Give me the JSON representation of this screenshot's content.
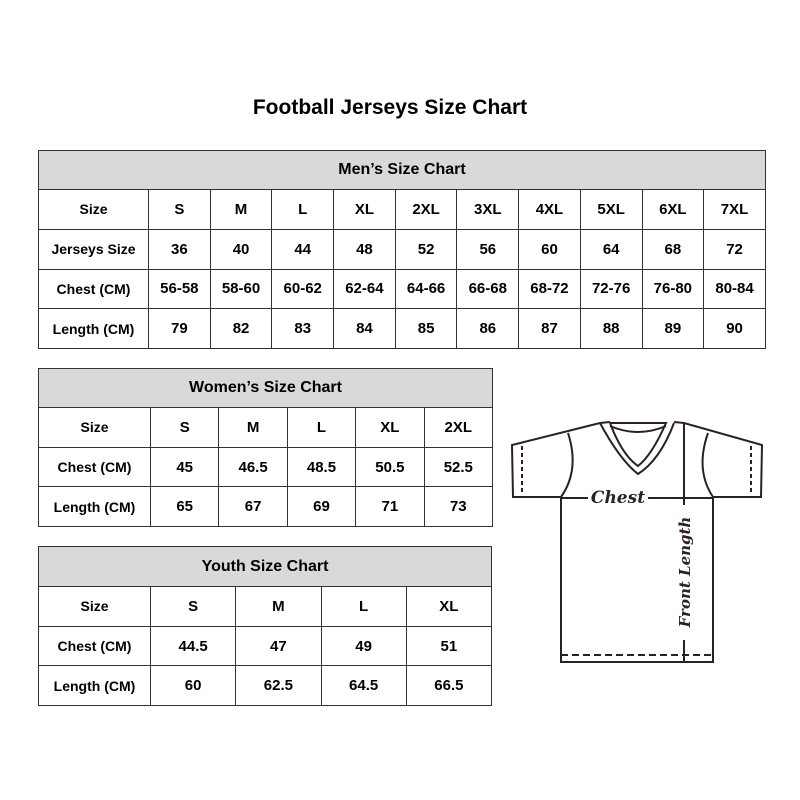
{
  "title": "Football Jerseys Size Chart",
  "tables": [
    {
      "id": "men",
      "heading": "Men’s Size Chart",
      "rows": [
        [
          "Size",
          "S",
          "M",
          "L",
          "XL",
          "2XL",
          "3XL",
          "4XL",
          "5XL",
          "6XL",
          "7XL"
        ],
        [
          "Jerseys Size",
          "36",
          "40",
          "44",
          "48",
          "52",
          "56",
          "60",
          "64",
          "68",
          "72"
        ],
        [
          "Chest (CM)",
          "56-58",
          "58-60",
          "60-62",
          "62-64",
          "64-66",
          "66-68",
          "68-72",
          "72-76",
          "76-80",
          "80-84"
        ],
        [
          "Length (CM)",
          "79",
          "82",
          "83",
          "84",
          "85",
          "86",
          "87",
          "88",
          "89",
          "90"
        ]
      ]
    },
    {
      "id": "women",
      "heading": "Women’s Size Chart",
      "rows": [
        [
          "Size",
          "S",
          "M",
          "L",
          "XL",
          "2XL"
        ],
        [
          "Chest (CM)",
          "45",
          "46.5",
          "48.5",
          "50.5",
          "52.5"
        ],
        [
          "Length (CM)",
          "65",
          "67",
          "69",
          "71",
          "73"
        ]
      ]
    },
    {
      "id": "youth",
      "heading": "Youth Size Chart",
      "rows": [
        [
          "Size",
          "S",
          "M",
          "L",
          "XL"
        ],
        [
          "Chest (CM)",
          "44.5",
          "47",
          "49",
          "51"
        ],
        [
          "Length (CM)",
          "60",
          "62.5",
          "64.5",
          "66.5"
        ]
      ]
    }
  ],
  "diagram": {
    "chest_label": "Chest",
    "length_label": "Front Length"
  },
  "colors": {
    "header_bg": "#d9d9d9",
    "border": "#333333",
    "diagram_line": "#2b2220"
  }
}
